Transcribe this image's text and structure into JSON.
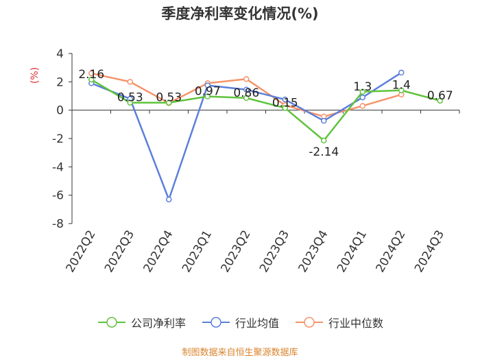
{
  "chart_data": {
    "type": "line",
    "title": "季度净利率变化情况(%)",
    "ylabel": "(%)",
    "xlabel": "",
    "categories": [
      "2022Q2",
      "2022Q3",
      "2022Q4",
      "2023Q1",
      "2023Q2",
      "2023Q3",
      "2023Q4",
      "2024Q1",
      "2024Q2",
      "2024Q3"
    ],
    "ylim": [
      -8,
      4
    ],
    "yticks": [
      4,
      2,
      0,
      -2,
      -4,
      -6,
      -8
    ],
    "grid": false,
    "legend_position": "bottom",
    "series": [
      {
        "name": "公司净利率",
        "color": "#5fc33b",
        "values": [
          2.16,
          0.53,
          0.53,
          0.97,
          0.86,
          0.15,
          -2.14,
          1.3,
          1.4,
          0.67
        ],
        "labels": [
          "2.16",
          "0.53",
          "0.53",
          "0.97",
          "0.86",
          "0.15",
          "-2.14",
          "1.3",
          "1.4",
          "0.67"
        ]
      },
      {
        "name": "行业均值",
        "color": "#5b7fdb",
        "values": [
          1.9,
          0.8,
          -6.3,
          1.75,
          1.45,
          0.75,
          -0.75,
          0.9,
          2.65,
          null
        ]
      },
      {
        "name": "行业中位数",
        "color": "#f5936a",
        "values": [
          2.6,
          2.0,
          0.5,
          1.9,
          2.2,
          0.35,
          -0.45,
          0.3,
          1.1,
          null
        ]
      }
    ]
  },
  "source": "制图数据来自恒生聚源数据库"
}
